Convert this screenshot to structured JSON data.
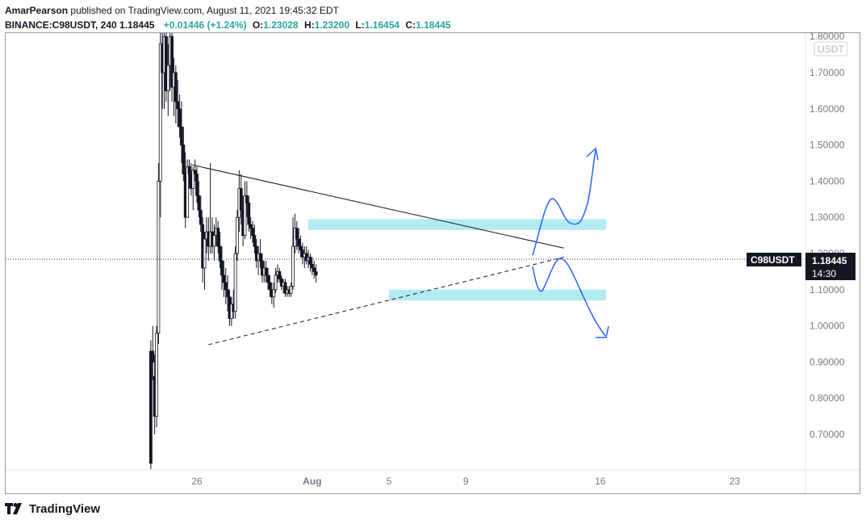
{
  "header": {
    "author": "AmarPearson",
    "published": "published on TradingView.com, August 11, 2021 19:45:32 EDT",
    "symbol": "BINANCE:C98USDT, 240",
    "last": "1.18445",
    "change": "+0.01446 (+1.24%)",
    "o_label": "O:",
    "o_value": "1.23028",
    "h_label": "H:",
    "h_value": "1.23200",
    "l_label": "L:",
    "l_value": "1.16454",
    "c_label": "C:",
    "c_value": "1.18445"
  },
  "footer": {
    "brand": "TradingView"
  },
  "chart_data": {
    "type": "candlestick",
    "symbol": "C98USDT",
    "interval": "240",
    "currency_badge": "USDT",
    "y_ticks": [
      "1.70000",
      "1.60000",
      "1.50000",
      "1.40000",
      "1.30000",
      "1.20000",
      "1.10000",
      "1.00000",
      "0.90000",
      "0.80000",
      "0.70000"
    ],
    "y_top_partial": "1.80000",
    "ylim": [
      0.6,
      1.82
    ],
    "x_ticks": [
      {
        "label": "26",
        "day": 26
      },
      {
        "label": "Aug",
        "day": 32
      },
      {
        "label": "5",
        "day": 36
      },
      {
        "label": "9",
        "day": 40
      },
      {
        "label": "16",
        "day": 47
      },
      {
        "label": "23",
        "day": 54
      }
    ],
    "last_price": {
      "symbol": "C98USDT",
      "price": "1.18445",
      "countdown": "14:30",
      "value": 1.18445
    },
    "zones": [
      {
        "from_day": 31.8,
        "to_day": 47.3,
        "low": 1.265,
        "high": 1.295,
        "color": "#b2ebf2"
      },
      {
        "from_day": 36.0,
        "to_day": 47.3,
        "low": 1.07,
        "high": 1.1,
        "color": "#b2ebf2"
      }
    ],
    "trendlines": [
      {
        "style": "solid",
        "x1_day": 25.75,
        "y1": 1.445,
        "x2_day": 45.1,
        "y2": 1.215
      },
      {
        "style": "dashed",
        "x1_day": 26.6,
        "y1": 0.948,
        "x2_day": 45.1,
        "y2": 1.19
      }
    ],
    "arrows": [
      {
        "direction": "up",
        "color": "#2962ff"
      },
      {
        "direction": "down",
        "color": "#2962ff"
      }
    ],
    "candles": [
      [
        23.6,
        0.93,
        0.96,
        0.6,
        0.62
      ],
      [
        23.7,
        0.93,
        1.0,
        0.85,
        0.9
      ],
      [
        23.8,
        0.86,
        0.92,
        0.7,
        0.75
      ],
      [
        23.9,
        0.75,
        1.0,
        0.72,
        0.98
      ],
      [
        24.0,
        0.98,
        1.45,
        0.95,
        1.4
      ],
      [
        24.1,
        1.4,
        1.82,
        1.3,
        1.78
      ],
      [
        24.2,
        1.78,
        1.82,
        1.6,
        1.7
      ],
      [
        24.3,
        1.7,
        1.82,
        1.6,
        1.8
      ],
      [
        24.4,
        1.8,
        1.82,
        1.62,
        1.65
      ],
      [
        24.5,
        1.65,
        1.78,
        1.58,
        1.72
      ],
      [
        24.6,
        1.72,
        1.82,
        1.65,
        1.8
      ],
      [
        24.7,
        1.8,
        1.82,
        1.62,
        1.66
      ],
      [
        24.8,
        1.66,
        1.74,
        1.58,
        1.7
      ],
      [
        24.9,
        1.7,
        1.72,
        1.56,
        1.62
      ],
      [
        25.0,
        1.62,
        1.68,
        1.55,
        1.6
      ],
      [
        25.1,
        1.6,
        1.64,
        1.52,
        1.55
      ],
      [
        25.2,
        1.55,
        1.62,
        1.45,
        1.5
      ],
      [
        25.3,
        1.5,
        1.55,
        1.4,
        1.42
      ],
      [
        25.4,
        1.42,
        1.48,
        1.27,
        1.3
      ],
      [
        25.5,
        1.3,
        1.46,
        1.3,
        1.44
      ],
      [
        25.6,
        1.44,
        1.46,
        1.38,
        1.42
      ],
      [
        25.7,
        1.42,
        1.45,
        1.36,
        1.38
      ],
      [
        25.8,
        1.38,
        1.44,
        1.32,
        1.43
      ],
      [
        25.9,
        1.43,
        1.46,
        1.4,
        1.42
      ],
      [
        26.0,
        1.42,
        1.44,
        1.34,
        1.36
      ],
      [
        26.1,
        1.36,
        1.4,
        1.3,
        1.32
      ],
      [
        26.2,
        1.32,
        1.36,
        1.26,
        1.28
      ],
      [
        26.3,
        1.28,
        1.3,
        1.12,
        1.16
      ],
      [
        26.4,
        1.16,
        1.26,
        1.1,
        1.24
      ],
      [
        26.5,
        1.24,
        1.3,
        1.2,
        1.26
      ],
      [
        26.6,
        1.26,
        1.3,
        1.18,
        1.22
      ],
      [
        26.7,
        1.22,
        1.45,
        1.2,
        1.26
      ],
      [
        26.8,
        1.26,
        1.3,
        1.2,
        1.22
      ],
      [
        26.9,
        1.22,
        1.28,
        1.18,
        1.25
      ],
      [
        27.0,
        1.25,
        1.3,
        1.22,
        1.27
      ],
      [
        27.1,
        1.27,
        1.29,
        1.2,
        1.22
      ],
      [
        27.2,
        1.22,
        1.26,
        1.16,
        1.18
      ],
      [
        27.3,
        1.18,
        1.22,
        1.1,
        1.14
      ],
      [
        27.4,
        1.14,
        1.18,
        1.08,
        1.12
      ],
      [
        27.5,
        1.12,
        1.16,
        1.06,
        1.1
      ],
      [
        27.6,
        1.1,
        1.14,
        1.04,
        1.08
      ],
      [
        27.7,
        1.08,
        1.1,
        1.0,
        1.02
      ],
      [
        27.8,
        1.02,
        1.08,
        1.0,
        1.06
      ],
      [
        27.9,
        1.06,
        1.1,
        1.02,
        1.04
      ],
      [
        28.0,
        1.04,
        1.22,
        1.02,
        1.2
      ],
      [
        28.1,
        1.2,
        1.32,
        1.18,
        1.3
      ],
      [
        28.2,
        1.3,
        1.43,
        1.26,
        1.38
      ],
      [
        28.3,
        1.38,
        1.42,
        1.28,
        1.32
      ],
      [
        28.4,
        1.32,
        1.36,
        1.22,
        1.25
      ],
      [
        28.5,
        1.25,
        1.4,
        1.24,
        1.36
      ],
      [
        28.6,
        1.36,
        1.4,
        1.3,
        1.34
      ],
      [
        28.7,
        1.34,
        1.36,
        1.26,
        1.28
      ],
      [
        28.8,
        1.28,
        1.3,
        1.24,
        1.27
      ],
      [
        28.9,
        1.27,
        1.29,
        1.23,
        1.25
      ],
      [
        29.0,
        1.25,
        1.28,
        1.2,
        1.22
      ],
      [
        29.1,
        1.22,
        1.24,
        1.16,
        1.18
      ],
      [
        29.2,
        1.18,
        1.22,
        1.14,
        1.2
      ],
      [
        29.3,
        1.2,
        1.24,
        1.16,
        1.18
      ],
      [
        29.4,
        1.18,
        1.2,
        1.12,
        1.14
      ],
      [
        29.5,
        1.14,
        1.18,
        1.12,
        1.16
      ],
      [
        29.6,
        1.16,
        1.18,
        1.12,
        1.14
      ],
      [
        29.7,
        1.14,
        1.16,
        1.1,
        1.12
      ],
      [
        29.8,
        1.12,
        1.14,
        1.08,
        1.1
      ],
      [
        29.9,
        1.1,
        1.12,
        1.06,
        1.08
      ],
      [
        30.0,
        1.08,
        1.12,
        1.05,
        1.1
      ],
      [
        30.1,
        1.1,
        1.16,
        1.09,
        1.14
      ],
      [
        30.2,
        1.14,
        1.17,
        1.12,
        1.15
      ],
      [
        30.3,
        1.15,
        1.16,
        1.12,
        1.13
      ],
      [
        30.4,
        1.13,
        1.14,
        1.1,
        1.11
      ],
      [
        30.5,
        1.11,
        1.13,
        1.09,
        1.12
      ],
      [
        30.6,
        1.12,
        1.13,
        1.08,
        1.09
      ],
      [
        30.7,
        1.09,
        1.11,
        1.08,
        1.1
      ],
      [
        30.8,
        1.1,
        1.11,
        1.08,
        1.09
      ],
      [
        30.9,
        1.09,
        1.12,
        1.08,
        1.11
      ],
      [
        31.0,
        1.11,
        1.3,
        1.1,
        1.22
      ],
      [
        31.1,
        1.22,
        1.31,
        1.2,
        1.27
      ],
      [
        31.2,
        1.27,
        1.29,
        1.21,
        1.24
      ],
      [
        31.3,
        1.24,
        1.27,
        1.2,
        1.22
      ],
      [
        31.4,
        1.22,
        1.25,
        1.19,
        1.21
      ],
      [
        31.5,
        1.21,
        1.23,
        1.17,
        1.19
      ],
      [
        31.6,
        1.19,
        1.22,
        1.16,
        1.2
      ],
      [
        31.7,
        1.2,
        1.22,
        1.17,
        1.18
      ],
      [
        31.8,
        1.18,
        1.21,
        1.16,
        1.19
      ],
      [
        31.9,
        1.19,
        1.2,
        1.15,
        1.17
      ],
      [
        32.0,
        1.17,
        1.19,
        1.14,
        1.16
      ],
      [
        32.1,
        1.16,
        1.18,
        1.13,
        1.15
      ],
      [
        32.2,
        1.15,
        1.17,
        1.12,
        1.14
      ]
    ]
  }
}
